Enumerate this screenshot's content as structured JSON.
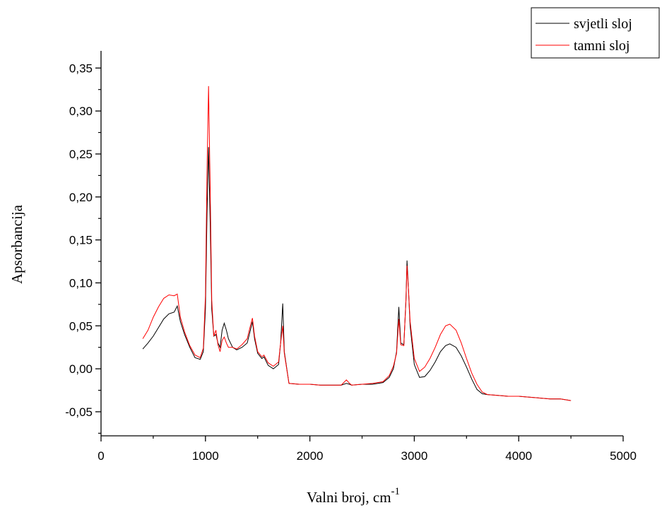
{
  "chart_data": {
    "type": "line",
    "xlabel": "Valni broj, cm",
    "xlabel_superscript": "-1",
    "ylabel": "Apsorbancija",
    "xlim": [
      0,
      5000
    ],
    "ylim": [
      -0.078,
      0.37
    ],
    "x_ticks": [
      0,
      1000,
      2000,
      3000,
      4000,
      5000
    ],
    "x_tick_labels": [
      "0",
      "1000",
      "2000",
      "3000",
      "4000",
      "5000"
    ],
    "y_ticks": [
      -0.05,
      0.0,
      0.05,
      0.1,
      0.15,
      0.2,
      0.25,
      0.3,
      0.35
    ],
    "y_tick_labels": [
      "-0,05",
      "0,00",
      "0,05",
      "0,10",
      "0,15",
      "0,20",
      "0,25",
      "0,30",
      "0,35"
    ],
    "grid": false,
    "legend_position": "top-right",
    "series": [
      {
        "name": "svjetli sloj",
        "color": "#000000",
        "points": [
          [
            400,
            0.023
          ],
          [
            450,
            0.03
          ],
          [
            500,
            0.038
          ],
          [
            550,
            0.048
          ],
          [
            600,
            0.058
          ],
          [
            650,
            0.064
          ],
          [
            700,
            0.066
          ],
          [
            730,
            0.073
          ],
          [
            760,
            0.055
          ],
          [
            800,
            0.04
          ],
          [
            850,
            0.025
          ],
          [
            900,
            0.013
          ],
          [
            950,
            0.011
          ],
          [
            980,
            0.02
          ],
          [
            1000,
            0.07
          ],
          [
            1015,
            0.18
          ],
          [
            1030,
            0.258
          ],
          [
            1045,
            0.17
          ],
          [
            1060,
            0.07
          ],
          [
            1080,
            0.038
          ],
          [
            1100,
            0.04
          ],
          [
            1120,
            0.03
          ],
          [
            1140,
            0.025
          ],
          [
            1160,
            0.045
          ],
          [
            1180,
            0.053
          ],
          [
            1200,
            0.045
          ],
          [
            1220,
            0.035
          ],
          [
            1260,
            0.025
          ],
          [
            1300,
            0.022
          ],
          [
            1350,
            0.025
          ],
          [
            1400,
            0.03
          ],
          [
            1430,
            0.045
          ],
          [
            1450,
            0.055
          ],
          [
            1470,
            0.035
          ],
          [
            1500,
            0.018
          ],
          [
            1540,
            0.012
          ],
          [
            1560,
            0.014
          ],
          [
            1600,
            0.004
          ],
          [
            1650,
            0.0
          ],
          [
            1700,
            0.005
          ],
          [
            1720,
            0.03
          ],
          [
            1740,
            0.076
          ],
          [
            1755,
            0.02
          ],
          [
            1800,
            -0.017
          ],
          [
            1900,
            -0.018
          ],
          [
            2000,
            -0.018
          ],
          [
            2100,
            -0.019
          ],
          [
            2200,
            -0.019
          ],
          [
            2300,
            -0.019
          ],
          [
            2350,
            -0.017
          ],
          [
            2380,
            -0.018
          ],
          [
            2400,
            -0.019
          ],
          [
            2500,
            -0.018
          ],
          [
            2600,
            -0.018
          ],
          [
            2700,
            -0.016
          ],
          [
            2760,
            -0.01
          ],
          [
            2800,
            0.0
          ],
          [
            2830,
            0.02
          ],
          [
            2852,
            0.072
          ],
          [
            2870,
            0.03
          ],
          [
            2900,
            0.028
          ],
          [
            2920,
            0.08
          ],
          [
            2930,
            0.126
          ],
          [
            2945,
            0.09
          ],
          [
            2960,
            0.05
          ],
          [
            3000,
            0.005
          ],
          [
            3050,
            -0.01
          ],
          [
            3100,
            -0.009
          ],
          [
            3150,
            -0.002
          ],
          [
            3200,
            0.008
          ],
          [
            3250,
            0.02
          ],
          [
            3300,
            0.027
          ],
          [
            3340,
            0.029
          ],
          [
            3400,
            0.025
          ],
          [
            3450,
            0.015
          ],
          [
            3500,
            0.002
          ],
          [
            3550,
            -0.012
          ],
          [
            3600,
            -0.024
          ],
          [
            3650,
            -0.029
          ],
          [
            3700,
            -0.03
          ],
          [
            3800,
            -0.031
          ],
          [
            3900,
            -0.032
          ],
          [
            4000,
            -0.032
          ],
          [
            4100,
            -0.033
          ],
          [
            4200,
            -0.034
          ],
          [
            4300,
            -0.035
          ],
          [
            4400,
            -0.035
          ],
          [
            4500,
            -0.037
          ]
        ]
      },
      {
        "name": "tamni sloj",
        "color": "#ff0000",
        "points": [
          [
            400,
            0.035
          ],
          [
            450,
            0.045
          ],
          [
            500,
            0.06
          ],
          [
            550,
            0.072
          ],
          [
            600,
            0.082
          ],
          [
            650,
            0.086
          ],
          [
            700,
            0.085
          ],
          [
            730,
            0.087
          ],
          [
            760,
            0.06
          ],
          [
            800,
            0.043
          ],
          [
            850,
            0.027
          ],
          [
            900,
            0.016
          ],
          [
            950,
            0.013
          ],
          [
            980,
            0.024
          ],
          [
            1000,
            0.085
          ],
          [
            1015,
            0.23
          ],
          [
            1030,
            0.329
          ],
          [
            1045,
            0.21
          ],
          [
            1060,
            0.08
          ],
          [
            1080,
            0.038
          ],
          [
            1100,
            0.045
          ],
          [
            1120,
            0.028
          ],
          [
            1140,
            0.02
          ],
          [
            1160,
            0.033
          ],
          [
            1180,
            0.037
          ],
          [
            1200,
            0.03
          ],
          [
            1220,
            0.025
          ],
          [
            1260,
            0.025
          ],
          [
            1300,
            0.023
          ],
          [
            1350,
            0.028
          ],
          [
            1400,
            0.035
          ],
          [
            1430,
            0.05
          ],
          [
            1450,
            0.059
          ],
          [
            1470,
            0.038
          ],
          [
            1500,
            0.02
          ],
          [
            1540,
            0.014
          ],
          [
            1560,
            0.016
          ],
          [
            1600,
            0.007
          ],
          [
            1650,
            0.003
          ],
          [
            1700,
            0.008
          ],
          [
            1720,
            0.03
          ],
          [
            1740,
            0.05
          ],
          [
            1755,
            0.018
          ],
          [
            1800,
            -0.017
          ],
          [
            1900,
            -0.018
          ],
          [
            2000,
            -0.018
          ],
          [
            2100,
            -0.019
          ],
          [
            2200,
            -0.019
          ],
          [
            2300,
            -0.019
          ],
          [
            2350,
            -0.013
          ],
          [
            2380,
            -0.017
          ],
          [
            2400,
            -0.019
          ],
          [
            2500,
            -0.018
          ],
          [
            2600,
            -0.017
          ],
          [
            2700,
            -0.015
          ],
          [
            2760,
            -0.008
          ],
          [
            2800,
            0.003
          ],
          [
            2830,
            0.018
          ],
          [
            2852,
            0.058
          ],
          [
            2870,
            0.028
          ],
          [
            2900,
            0.027
          ],
          [
            2920,
            0.08
          ],
          [
            2930,
            0.12
          ],
          [
            2945,
            0.09
          ],
          [
            2960,
            0.055
          ],
          [
            3000,
            0.012
          ],
          [
            3050,
            -0.003
          ],
          [
            3100,
            0.002
          ],
          [
            3150,
            0.012
          ],
          [
            3200,
            0.025
          ],
          [
            3250,
            0.04
          ],
          [
            3300,
            0.05
          ],
          [
            3340,
            0.052
          ],
          [
            3400,
            0.045
          ],
          [
            3450,
            0.03
          ],
          [
            3500,
            0.012
          ],
          [
            3550,
            -0.005
          ],
          [
            3600,
            -0.018
          ],
          [
            3650,
            -0.027
          ],
          [
            3700,
            -0.03
          ],
          [
            3800,
            -0.031
          ],
          [
            3900,
            -0.032
          ],
          [
            4000,
            -0.032
          ],
          [
            4100,
            -0.033
          ],
          [
            4200,
            -0.034
          ],
          [
            4300,
            -0.035
          ],
          [
            4400,
            -0.035
          ],
          [
            4500,
            -0.037
          ]
        ]
      }
    ]
  }
}
